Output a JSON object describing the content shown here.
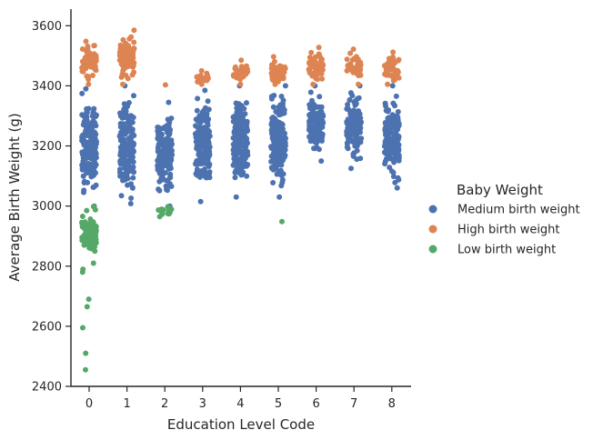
{
  "chart_data": {
    "type": "scatter",
    "subtype": "strip",
    "xlabel": "Education Level Code",
    "ylabel": "Average Birth Weight (g)",
    "categories": [
      "0",
      "1",
      "2",
      "3",
      "4",
      "5",
      "6",
      "7",
      "8"
    ],
    "ylim": [
      2400,
      3650
    ],
    "yticks": [
      2400,
      2600,
      2800,
      3000,
      3200,
      3400,
      3600
    ],
    "grid": false,
    "legend": {
      "title": "Baby Weight",
      "placement": "right"
    },
    "series": [
      {
        "name": "Medium birth weight",
        "color": "#4c72b0",
        "ranges": [
          {
            "category": "0",
            "min": 3000,
            "max": 3390
          },
          {
            "category": "1",
            "min": 3008,
            "max": 3400
          },
          {
            "category": "2",
            "min": 3000,
            "max": 3345
          },
          {
            "category": "3",
            "min": 3015,
            "max": 3385
          },
          {
            "category": "4",
            "min": 3030,
            "max": 3400
          },
          {
            "category": "5",
            "min": 3030,
            "max": 3400
          },
          {
            "category": "6",
            "min": 3150,
            "max": 3400
          },
          {
            "category": "7",
            "min": 3125,
            "max": 3400
          },
          {
            "category": "8",
            "min": 3060,
            "max": 3400
          }
        ]
      },
      {
        "name": "High birth weight",
        "color": "#dd8452",
        "ranges": [
          {
            "category": "0",
            "min": 3405,
            "max": 3548
          },
          {
            "category": "1",
            "min": 3405,
            "max": 3585
          },
          {
            "category": "2",
            "min": 3403,
            "max": 3403
          },
          {
            "category": "3",
            "min": 3405,
            "max": 3450
          },
          {
            "category": "4",
            "min": 3405,
            "max": 3485
          },
          {
            "category": "5",
            "min": 3405,
            "max": 3497
          },
          {
            "category": "6",
            "min": 3405,
            "max": 3528
          },
          {
            "category": "7",
            "min": 3405,
            "max": 3522
          },
          {
            "category": "8",
            "min": 3405,
            "max": 3512
          }
        ]
      },
      {
        "name": "Low birth weight",
        "color": "#55a868",
        "ranges": [
          {
            "category": "0",
            "min": 2455,
            "max": 2998
          },
          {
            "category": "2",
            "min": 2965,
            "max": 2998
          },
          {
            "category": "5",
            "min": 2948,
            "max": 2948
          }
        ],
        "outliers": [
          {
            "category": "0",
            "y": 2455
          },
          {
            "category": "0",
            "y": 2510
          },
          {
            "category": "0",
            "y": 2595
          },
          {
            "category": "0",
            "y": 2665
          },
          {
            "category": "0",
            "y": 2690
          },
          {
            "category": "0",
            "y": 2780
          },
          {
            "category": "0",
            "y": 2790
          }
        ]
      }
    ]
  }
}
